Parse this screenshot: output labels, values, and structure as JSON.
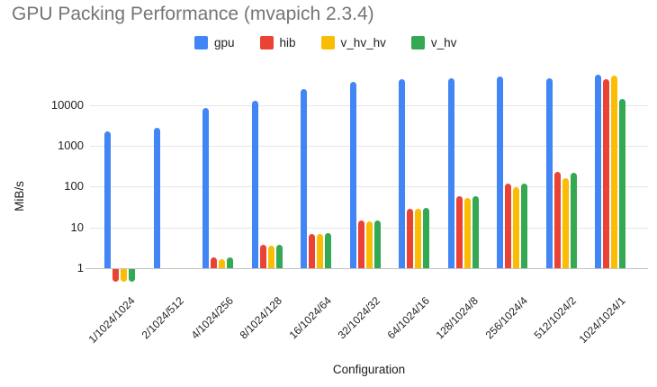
{
  "chart_data": {
    "type": "bar",
    "title": "GPU Packing Performance (mvapich 2.3.4)",
    "xlabel": "Configuration",
    "ylabel": "MiB/s",
    "y_scale": "log",
    "y_ticks": [
      1,
      10,
      100,
      1000,
      10000
    ],
    "ylim": [
      0.4,
      70000
    ],
    "grid": true,
    "legend_position": "top",
    "categories": [
      "1/1024/1024",
      "2/1024/512",
      "4/1024/256",
      "8/1024/128",
      "16/1024/64",
      "32/1024/32",
      "64/1024/16",
      "128/1024/8",
      "256/1024/4",
      "512/1024/2",
      "1024/1024/1"
    ],
    "series": [
      {
        "name": "gpu",
        "color": "#4285F4",
        "values": [
          2250,
          2700,
          8300,
          13000,
          25000,
          36000,
          44000,
          46000,
          49000,
          45000,
          54000
        ]
      },
      {
        "name": "hib",
        "color": "#EA4335",
        "values": [
          0.5,
          null,
          1.8,
          3.7,
          7.0,
          15,
          29,
          58,
          120,
          230,
          44000
        ]
      },
      {
        "name": "v_hv_hv",
        "color": "#FBBC04",
        "values": [
          0.5,
          null,
          1.7,
          3.6,
          6.8,
          14,
          28,
          52,
          95,
          160,
          52000
        ]
      },
      {
        "name": "v_hv",
        "color": "#34A853",
        "values": [
          0.5,
          null,
          1.8,
          3.8,
          7.3,
          15,
          30,
          58,
          120,
          215,
          13800
        ]
      }
    ]
  }
}
